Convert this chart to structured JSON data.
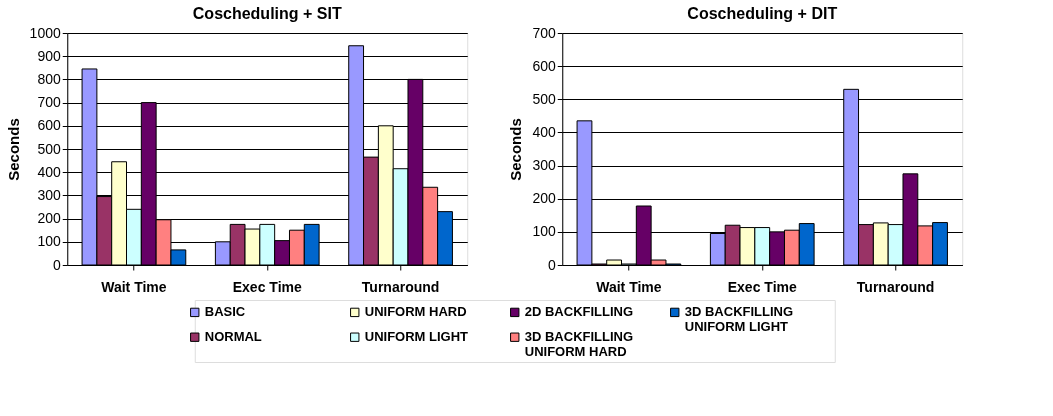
{
  "chart_data": [
    {
      "type": "bar",
      "title": "Coscheduling + SIT",
      "ylabel": "Seconds",
      "categories": [
        "Wait Time",
        "Exec Time",
        "Turnaround"
      ],
      "ylim": [
        0,
        1000
      ],
      "yticks": [
        0,
        100,
        200,
        300,
        400,
        500,
        600,
        700,
        800,
        900,
        1000
      ],
      "grid": "y",
      "legend": "bottom",
      "series": [
        {
          "name": "BASIC",
          "color": "#9999ff",
          "values": [
            845,
            100,
            945
          ]
        },
        {
          "name": "NORMAL",
          "color": "#993366",
          "values": [
            295,
            175,
            465
          ]
        },
        {
          "name": "UNIFORM HARD",
          "color": "#ffffcc",
          "values": [
            445,
            155,
            600
          ]
        },
        {
          "name": "UNIFORM LIGHT",
          "color": "#ccffff",
          "values": [
            240,
            175,
            415
          ]
        },
        {
          "name": "2D BACKFILLING",
          "color": "#660066",
          "values": [
            700,
            105,
            800
          ]
        },
        {
          "name": "3D BACKFILLING UNIFORM HARD",
          "color": "#ff8080",
          "values": [
            195,
            150,
            335
          ]
        },
        {
          "name": "3D BACKFILLING UNIFORM LIGHT",
          "color": "#0066cc",
          "values": [
            65,
            175,
            230
          ]
        }
      ]
    },
    {
      "type": "bar",
      "title": "Coscheduling + DIT",
      "ylabel": "Seconds",
      "categories": [
        "Wait Time",
        "Exec Time",
        "Turnaround"
      ],
      "ylim": [
        0,
        700
      ],
      "yticks": [
        0,
        100,
        200,
        300,
        400,
        500,
        600,
        700
      ],
      "grid": "y",
      "series": [
        {
          "color": "#9999ff",
          "values": [
            435,
            95,
            530
          ]
        },
        {
          "color": "#993366",
          "values": [
            3,
            120,
            122
          ]
        },
        {
          "color": "#ffffcc",
          "values": [
            15,
            113,
            127
          ]
        },
        {
          "color": "#ccffff",
          "values": [
            3,
            113,
            122
          ]
        },
        {
          "color": "#660066",
          "values": [
            178,
            100,
            275
          ]
        },
        {
          "color": "#ff8080",
          "values": [
            15,
            105,
            118
          ]
        },
        {
          "color": "#0066cc",
          "values": [
            3,
            125,
            128
          ]
        }
      ]
    }
  ]
}
